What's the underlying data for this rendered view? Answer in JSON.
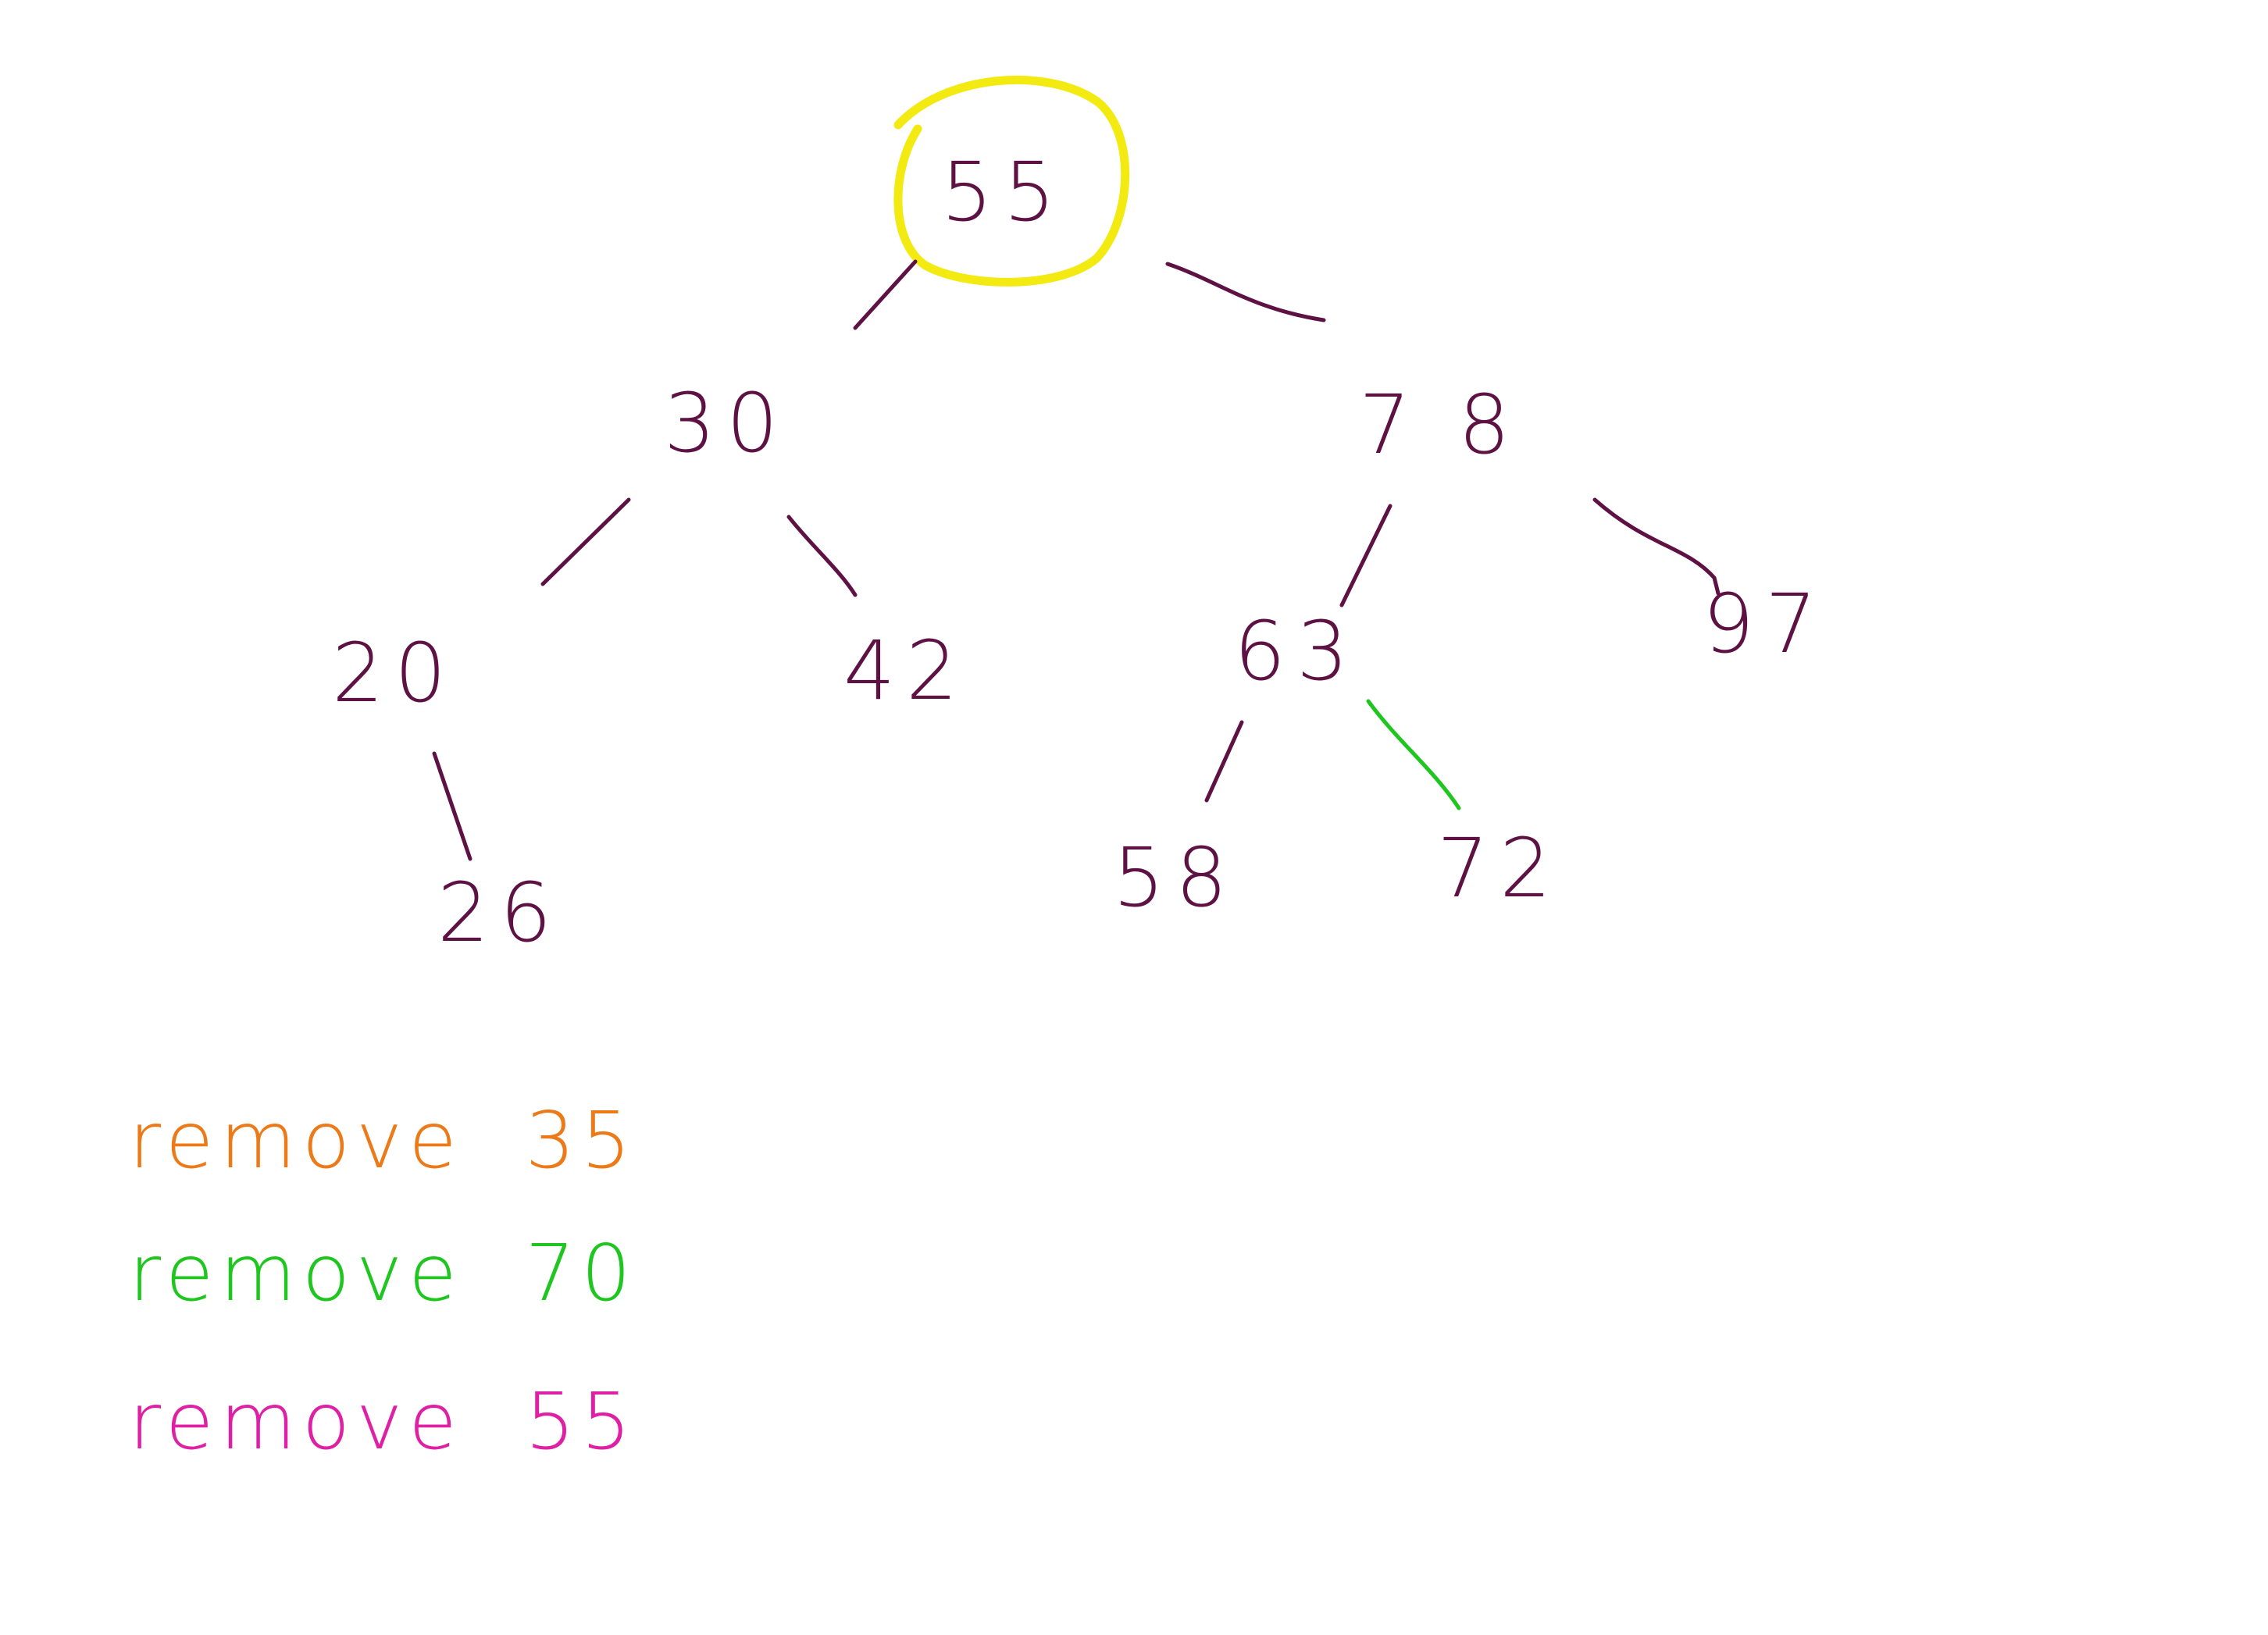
{
  "colors": {
    "background": "#ffffff",
    "ink": "#5e1244",
    "highlight": "#f2ea10",
    "orange": "#ec7a18",
    "green": "#1fc61f",
    "pink": "#e020a4"
  },
  "tree": {
    "nodes": [
      {
        "id": "n55",
        "label": "55",
        "highlighted": true
      },
      {
        "id": "n30",
        "label": "30"
      },
      {
        "id": "n78",
        "label": "7 8"
      },
      {
        "id": "n20",
        "label": "20"
      },
      {
        "id": "n42",
        "label": "42"
      },
      {
        "id": "n63",
        "label": "63"
      },
      {
        "id": "n97",
        "label": "97"
      },
      {
        "id": "n26",
        "label": "26"
      },
      {
        "id": "n58",
        "label": "58"
      },
      {
        "id": "n72",
        "label": "72"
      }
    ],
    "edges": [
      {
        "from": "n55",
        "to": "n30",
        "color": "ink"
      },
      {
        "from": "n55",
        "to": "n78",
        "color": "ink"
      },
      {
        "from": "n30",
        "to": "n20",
        "color": "ink"
      },
      {
        "from": "n30",
        "to": "n42",
        "color": "ink"
      },
      {
        "from": "n78",
        "to": "n63",
        "color": "ink"
      },
      {
        "from": "n78",
        "to": "n97",
        "color": "ink"
      },
      {
        "from": "n20",
        "to": "n26",
        "color": "ink"
      },
      {
        "from": "n63",
        "to": "n58",
        "color": "ink"
      },
      {
        "from": "n63",
        "to": "n72",
        "color": "green"
      }
    ]
  },
  "notes": [
    {
      "word": "remove",
      "value": "35",
      "color": "orange"
    },
    {
      "word": "remove",
      "value": "70",
      "color": "green"
    },
    {
      "word": "remove",
      "value": "55",
      "color": "pink"
    }
  ]
}
